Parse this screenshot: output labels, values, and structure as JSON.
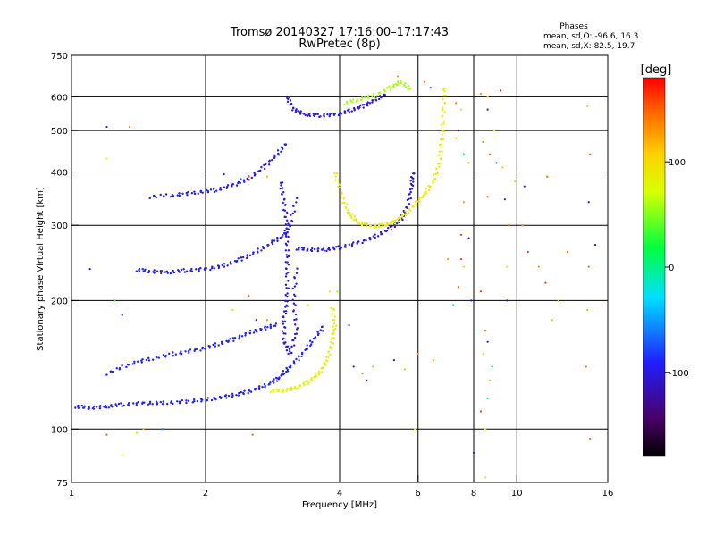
{
  "chart_data": {
    "type": "scatter",
    "title_line1": "Tromsø 20140327 17:16:00–17:17:43",
    "title_line2": "RwPretec (8p)",
    "phases": {
      "heading": "Phases",
      "line_o": "mean, sd,O: -96.6, 16.3",
      "line_x": "mean, sd,X:  82.5, 19.7"
    },
    "xlabel": "Frequency [MHz]",
    "ylabel": "Stationary phase Virtual Height [km]",
    "x_scale": "log2",
    "y_scale": "log",
    "xlim": [
      1,
      16
    ],
    "ylim": [
      75,
      750
    ],
    "x_ticks": [
      {
        "v": 1,
        "label": "1"
      },
      {
        "v": 2,
        "label": "2"
      },
      {
        "v": 4,
        "label": "4"
      },
      {
        "v": 6,
        "label": "6"
      },
      {
        "v": 8,
        "label": "8"
      },
      {
        "v": 10,
        "label": "10"
      },
      {
        "v": 16,
        "label": "16"
      }
    ],
    "x_gridlines": [
      2,
      4,
      6,
      8,
      10
    ],
    "y_ticks": [
      {
        "v": 75,
        "label": "75"
      },
      {
        "v": 100,
        "label": "100"
      },
      {
        "v": 200,
        "label": "200"
      },
      {
        "v": 300,
        "label": "300"
      },
      {
        "v": 400,
        "label": "400"
      },
      {
        "v": 500,
        "label": "500"
      },
      {
        "v": 600,
        "label": "600"
      },
      {
        "v": 750,
        "label": "750"
      }
    ],
    "y_gridlines": [
      100,
      200,
      300,
      400,
      500,
      600
    ],
    "colorbar": {
      "unit_label": "[deg]",
      "range": [
        -180,
        180
      ],
      "ticks": [
        {
          "v": 100,
          "label": "100"
        },
        {
          "v": 0,
          "label": "0"
        },
        {
          "v": -100,
          "label": "-100"
        }
      ]
    },
    "traces": [
      {
        "mode": "O",
        "phase": -90,
        "points": [
          [
            1.02,
            113
          ],
          [
            1.1,
            112
          ],
          [
            1.2,
            113
          ],
          [
            1.3,
            114
          ],
          [
            1.45,
            115
          ],
          [
            1.6,
            115
          ],
          [
            1.8,
            116
          ],
          [
            2.0,
            117
          ],
          [
            2.2,
            119
          ],
          [
            2.4,
            121
          ],
          [
            2.6,
            124
          ],
          [
            2.8,
            128
          ],
          [
            2.95,
            133
          ],
          [
            3.1,
            140
          ],
          [
            3.3,
            150
          ],
          [
            3.5,
            162
          ],
          [
            3.7,
            175
          ]
        ]
      },
      {
        "mode": "O",
        "phase": -90,
        "points": [
          [
            1.2,
            135
          ],
          [
            1.35,
            142
          ],
          [
            1.5,
            146
          ],
          [
            1.7,
            150
          ],
          [
            1.9,
            153
          ],
          [
            2.1,
            157
          ],
          [
            2.3,
            162
          ],
          [
            2.5,
            168
          ],
          [
            2.7,
            172
          ],
          [
            2.9,
            176
          ]
        ]
      },
      {
        "mode": "O",
        "phase": -95,
        "points": [
          [
            1.4,
            236
          ],
          [
            1.5,
            234
          ],
          [
            1.65,
            233
          ],
          [
            1.8,
            235
          ],
          [
            2.0,
            237
          ],
          [
            2.2,
            241
          ],
          [
            2.4,
            250
          ],
          [
            2.6,
            260
          ],
          [
            2.8,
            272
          ],
          [
            3.0,
            285
          ],
          [
            3.1,
            300
          ],
          [
            3.2,
            350
          ]
        ]
      },
      {
        "mode": "O",
        "phase": -95,
        "points": [
          [
            1.5,
            350
          ],
          [
            1.7,
            353
          ],
          [
            1.9,
            358
          ],
          [
            2.1,
            362
          ],
          [
            2.3,
            372
          ],
          [
            2.5,
            385
          ],
          [
            2.7,
            410
          ],
          [
            2.9,
            440
          ],
          [
            3.05,
            470
          ]
        ]
      },
      {
        "mode": "O",
        "phase": -100,
        "points": [
          [
            3.2,
            265
          ],
          [
            3.4,
            263
          ],
          [
            3.7,
            263
          ],
          [
            4.0,
            266
          ],
          [
            4.4,
            273
          ],
          [
            4.8,
            282
          ],
          [
            5.2,
            295
          ],
          [
            5.5,
            310
          ],
          [
            5.7,
            335
          ],
          [
            5.8,
            370
          ],
          [
            5.85,
            400
          ]
        ]
      },
      {
        "mode": "O",
        "phase": -100,
        "points": [
          [
            3.05,
            600
          ],
          [
            3.15,
            560
          ],
          [
            3.35,
            545
          ],
          [
            3.6,
            542
          ],
          [
            3.9,
            545
          ],
          [
            4.2,
            555
          ],
          [
            4.5,
            570
          ],
          [
            4.8,
            590
          ],
          [
            5.1,
            610
          ]
        ]
      },
      {
        "mode": "O",
        "phase": -100,
        "points": [
          [
            2.95,
            380
          ],
          [
            3.0,
            340
          ],
          [
            3.05,
            300
          ],
          [
            3.05,
            260
          ],
          [
            3.05,
            230
          ],
          [
            3.05,
            200
          ],
          [
            3.0,
            180
          ],
          [
            3.0,
            160
          ],
          [
            3.1,
            150
          ],
          [
            3.2,
            170
          ],
          [
            3.15,
            200
          ],
          [
            3.2,
            240
          ]
        ]
      },
      {
        "mode": "X",
        "phase": 80,
        "points": [
          [
            2.8,
            123
          ],
          [
            3.0,
            123
          ],
          [
            3.2,
            125
          ],
          [
            3.4,
            129
          ],
          [
            3.6,
            135
          ],
          [
            3.75,
            145
          ],
          [
            3.85,
            160
          ],
          [
            3.9,
            175
          ],
          [
            3.85,
            195
          ]
        ]
      },
      {
        "mode": "X",
        "phase": 85,
        "points": [
          [
            3.9,
            400
          ],
          [
            4.05,
            350
          ],
          [
            4.2,
            320
          ],
          [
            4.4,
            305
          ],
          [
            4.7,
            298
          ],
          [
            5.0,
            300
          ],
          [
            5.3,
            305
          ],
          [
            5.6,
            318
          ],
          [
            5.9,
            335
          ],
          [
            6.2,
            355
          ],
          [
            6.5,
            380
          ],
          [
            6.7,
            420
          ],
          [
            6.8,
            480
          ],
          [
            6.85,
            560
          ],
          [
            6.9,
            640
          ]
        ]
      },
      {
        "mode": "X",
        "phase": 60,
        "points": [
          [
            4.1,
            580
          ],
          [
            4.4,
            590
          ],
          [
            4.8,
            605
          ],
          [
            5.2,
            630
          ],
          [
            5.5,
            650
          ],
          [
            5.8,
            620
          ]
        ]
      }
    ],
    "scatter": [
      [
        1.2,
        510,
        -105
      ],
      [
        1.35,
        510,
        150
      ],
      [
        1.2,
        430,
        80
      ],
      [
        1.1,
        237,
        -90
      ],
      [
        1.25,
        200,
        30
      ],
      [
        1.3,
        185,
        -80
      ],
      [
        1.4,
        98,
        60
      ],
      [
        1.3,
        87,
        80
      ],
      [
        1.2,
        97,
        150
      ],
      [
        2.55,
        97,
        150
      ],
      [
        1.45,
        100,
        120
      ],
      [
        1.6,
        100,
        -60
      ],
      [
        2.2,
        395,
        -105
      ],
      [
        2.5,
        390,
        150
      ],
      [
        2.75,
        390,
        120
      ],
      [
        2.4,
        385,
        -80
      ],
      [
        2.5,
        205,
        150
      ],
      [
        2.3,
        190,
        60
      ],
      [
        2.6,
        180,
        -100
      ],
      [
        2.75,
        180,
        130
      ],
      [
        3.4,
        195,
        60
      ],
      [
        3.8,
        210,
        100
      ],
      [
        3.95,
        210,
        60
      ],
      [
        4.2,
        175,
        -110
      ],
      [
        4.3,
        140,
        -110
      ],
      [
        4.5,
        135,
        150
      ],
      [
        4.6,
        130,
        -100
      ],
      [
        4.75,
        140,
        40
      ],
      [
        5.3,
        145,
        -100
      ],
      [
        5.6,
        138,
        120
      ],
      [
        5.9,
        100,
        60
      ],
      [
        6.0,
        150,
        130
      ],
      [
        6.5,
        145,
        120
      ],
      [
        5.4,
        670,
        130
      ],
      [
        6.2,
        650,
        140
      ],
      [
        6.4,
        630,
        -90
      ],
      [
        7.3,
        580,
        140
      ],
      [
        7.5,
        560,
        60
      ],
      [
        7.4,
        500,
        -110
      ],
      [
        7.3,
        480,
        110
      ],
      [
        7.6,
        440,
        20
      ],
      [
        7.8,
        420,
        130
      ],
      [
        7.6,
        340,
        130
      ],
      [
        7.5,
        285,
        160
      ],
      [
        7.8,
        280,
        -100
      ],
      [
        7.5,
        250,
        160
      ],
      [
        7.6,
        240,
        110
      ],
      [
        7.4,
        215,
        150
      ],
      [
        7.9,
        200,
        -100
      ],
      [
        8.3,
        210,
        160
      ],
      [
        8.5,
        170,
        150
      ],
      [
        8.6,
        160,
        -100
      ],
      [
        8.4,
        150,
        100
      ],
      [
        8.8,
        140,
        -70
      ],
      [
        8.7,
        130,
        120
      ],
      [
        8.6,
        118,
        -10
      ],
      [
        8.3,
        110,
        160
      ],
      [
        8.5,
        100,
        80
      ],
      [
        8.0,
        88,
        -100
      ],
      [
        8.5,
        77,
        60
      ],
      [
        8.3,
        610,
        140
      ],
      [
        8.6,
        600,
        120
      ],
      [
        9.2,
        620,
        170
      ],
      [
        8.6,
        560,
        -100
      ],
      [
        8.9,
        500,
        60
      ],
      [
        8.4,
        470,
        140
      ],
      [
        8.7,
        440,
        150
      ],
      [
        9.0,
        420,
        -70
      ],
      [
        9.3,
        410,
        110
      ],
      [
        8.6,
        350,
        150
      ],
      [
        9.4,
        345,
        -100
      ],
      [
        9.9,
        380,
        60
      ],
      [
        9.6,
        300,
        150
      ],
      [
        10.3,
        300,
        140
      ],
      [
        10.6,
        260,
        160
      ],
      [
        11.2,
        240,
        140
      ],
      [
        11.6,
        220,
        160
      ],
      [
        12.4,
        200,
        60
      ],
      [
        12.0,
        180,
        120
      ],
      [
        13.0,
        260,
        150
      ],
      [
        10.4,
        370,
        -90
      ],
      [
        14.5,
        340,
        -110
      ],
      [
        15.0,
        270,
        -110
      ],
      [
        14.5,
        240,
        150
      ],
      [
        14.4,
        190,
        120
      ],
      [
        14.3,
        140,
        150
      ],
      [
        14.6,
        95,
        150
      ],
      [
        14.4,
        570,
        100
      ],
      [
        14.6,
        440,
        150
      ],
      [
        11.7,
        390,
        150
      ],
      [
        9.5,
        240,
        60
      ],
      [
        9.5,
        200,
        -100
      ],
      [
        7.0,
        250,
        130
      ],
      [
        7.2,
        195,
        -20
      ]
    ]
  }
}
